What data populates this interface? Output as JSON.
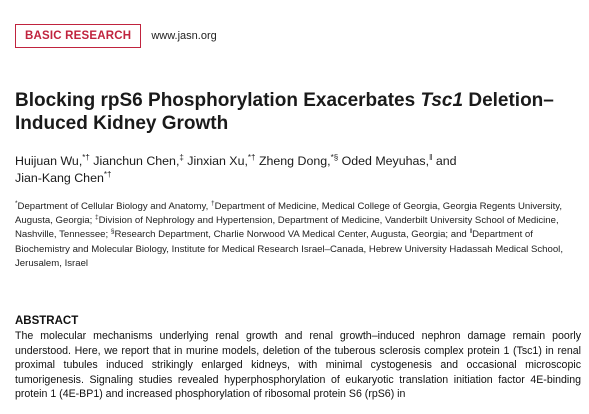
{
  "header": {
    "section_label": "BASIC RESEARCH",
    "journal_url": "www.jasn.org"
  },
  "title": {
    "part1": "Blocking rpS6 Phosphorylation Exacerbates ",
    "gene": "Tsc1",
    "part2": " Deletion–Induced Kidney Growth"
  },
  "authors": [
    {
      "name": "Huijuan Wu,",
      "marks": "*†",
      "after": " "
    },
    {
      "name": "Jianchun Chen,",
      "marks": "‡",
      "after": " "
    },
    {
      "name": "Jinxian Xu,",
      "marks": "*†",
      "after": " "
    },
    {
      "name": "Zheng Dong,",
      "marks": "*§",
      "after": " "
    },
    {
      "name": "Oded Meyuhas,",
      "marks": "‖",
      "after": " and "
    },
    {
      "name": "Jian-Kang Chen",
      "marks": "*†",
      "after": ""
    }
  ],
  "affiliations": [
    {
      "mark": "*",
      "text": "Department of Cellular Biology and Anatomy, "
    },
    {
      "mark": "†",
      "text": "Department of Medicine, Medical College of Georgia, Georgia Regents University, Augusta, Georgia; "
    },
    {
      "mark": "‡",
      "text": "Division of Nephrology and Hypertension, Department of Medicine, Vanderbilt University School of Medicine, Nashville, Tennessee; "
    },
    {
      "mark": "§",
      "text": "Research Department, Charlie Norwood VA Medical Center, Augusta, Georgia; and "
    },
    {
      "mark": "‖",
      "text": "Department of Biochemistry and Molecular Biology, Institute for Medical Research Israel–Canada, Hebrew University Hadassah Medical School, Jerusalem, Israel"
    }
  ],
  "abstract": {
    "heading": "ABSTRACT",
    "text": "The molecular mechanisms underlying renal growth and renal growth–induced nephron damage remain poorly understood. Here, we report that in murine models, deletion of the tuberous sclerosis complex protein 1 (Tsc1) in renal proximal tubules induced strikingly enlarged kidneys, with minimal cystogenesis and occasional microscopic tumorigenesis. Signaling studies revealed hyperphosphorylation of eukaryotic translation initiation factor 4E-binding protein 1 (4E-BP1) and increased phosphorylation of ribosomal protein S6 (rpS6) in"
  },
  "colors": {
    "badge": "#c0233e",
    "text": "#111111"
  }
}
